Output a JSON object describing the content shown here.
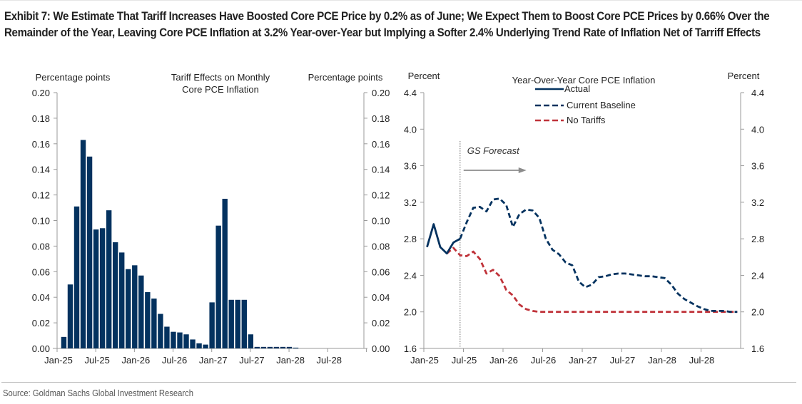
{
  "exhibit": {
    "title": "Exhibit 7: We Estimate That Tariff Increases Have Boosted Core PCE Price by 0.2% as of June; We Expect Them to Boost Core PCE Prices by 0.66% Over the Remainder of the Year, Leaving Core PCE Inflation at 3.2% Year-over-Year but Implying a Softer 2.4% Underlying Trend Rate of Inflation Net of Tarriff Effects",
    "source": "Source: Goldman Sachs Global Investment Research"
  },
  "colors": {
    "navy": "#04325f",
    "red": "#c0333a",
    "axis": "#9a9a9a",
    "forecast_arrow": "#8c8c8c"
  },
  "chart_data": [
    {
      "type": "bar",
      "title": "Tariff Effects on Monthly Core PCE Inflation",
      "ylabel_left": "Percentage points",
      "ylabel_right": "Percentage points",
      "xlabel": "",
      "ylim": [
        0,
        0.2
      ],
      "yticks": [
        "0.00",
        "0.02",
        "0.04",
        "0.06",
        "0.08",
        "0.10",
        "0.12",
        "0.14",
        "0.16",
        "0.18",
        "0.20"
      ],
      "xticks": [
        "Jan-25",
        "Jul-25",
        "Jan-26",
        "Jul-26",
        "Jan-27",
        "Jul-27",
        "Jan-28",
        "Jul-28"
      ],
      "grid": false,
      "categories": [
        "Feb-25",
        "Mar-25",
        "Apr-25",
        "May-25",
        "Jun-25",
        "Jul-25",
        "Aug-25",
        "Sep-25",
        "Oct-25",
        "Nov-25",
        "Dec-25",
        "Jan-26",
        "Feb-26",
        "Mar-26",
        "Apr-26",
        "May-26",
        "Jun-26",
        "Jul-26",
        "Aug-26",
        "Sep-26",
        "Oct-26",
        "Nov-26",
        "Dec-26",
        "Jan-27",
        "Feb-27",
        "Mar-27",
        "Apr-27",
        "May-27",
        "Jun-27",
        "Jul-27",
        "Aug-27",
        "Sep-27",
        "Oct-27",
        "Nov-27",
        "Dec-27",
        "Jan-28",
        "Feb-28"
      ],
      "values": [
        0.009,
        0.05,
        0.111,
        0.163,
        0.15,
        0.093,
        0.094,
        0.108,
        0.083,
        0.075,
        0.062,
        0.065,
        0.057,
        0.044,
        0.039,
        0.027,
        0.017,
        0.013,
        0.0125,
        0.011,
        0.007,
        0.004,
        0.003,
        0.036,
        0.096,
        0.117,
        0.038,
        0.038,
        0.038,
        0.011,
        0.0012,
        0.0012,
        0.0012,
        0.0012,
        0.0012,
        0.0012,
        0.0006
      ]
    },
    {
      "type": "line",
      "title": "Year-Over-Year Core PCE Inflation",
      "ylabel_left": "Percent",
      "ylabel_right": "Percent",
      "xlabel": "",
      "ylim": [
        1.6,
        4.4
      ],
      "yticks": [
        "1.6",
        "2.0",
        "2.4",
        "2.8",
        "3.2",
        "3.6",
        "4.0",
        "4.4"
      ],
      "xticks": [
        "Jan-25",
        "Jul-25",
        "Jan-26",
        "Jul-26",
        "Jan-27",
        "Jul-27",
        "Jan-28",
        "Jul-28"
      ],
      "grid": false,
      "legend_position": "top-center",
      "annotation": {
        "text": "GS Forecast",
        "at": "Jun-25"
      },
      "series": [
        {
          "name": "Actual",
          "style": "solid",
          "color": "#04325f",
          "x": [
            "Jan-25",
            "Feb-25",
            "Mar-25",
            "Apr-25",
            "May-25",
            "Jun-25"
          ],
          "values": [
            2.71,
            2.96,
            2.71,
            2.64,
            2.76,
            2.8
          ]
        },
        {
          "name": "Current Baseline",
          "style": "dashed",
          "color": "#04325f",
          "x": [
            "Jun-25",
            "Jul-25",
            "Aug-25",
            "Sep-25",
            "Oct-25",
            "Nov-25",
            "Dec-25",
            "Jan-26",
            "Feb-26",
            "Mar-26",
            "Apr-26",
            "May-26",
            "Jun-26",
            "Jul-26",
            "Aug-26",
            "Sep-26",
            "Oct-26",
            "Nov-26",
            "Dec-26",
            "Jan-27",
            "Feb-27",
            "Mar-27",
            "Apr-27",
            "May-27",
            "Jun-27",
            "Jul-27",
            "Aug-27",
            "Sep-27",
            "Oct-27",
            "Nov-27",
            "Dec-27",
            "Jan-28",
            "Feb-28",
            "Mar-28",
            "Apr-28",
            "May-28",
            "Jun-28",
            "Jul-28",
            "Aug-28",
            "Sep-28",
            "Oct-28",
            "Nov-28",
            "Dec-28"
          ],
          "values": [
            2.8,
            2.98,
            3.14,
            3.15,
            3.1,
            3.23,
            3.24,
            3.17,
            2.93,
            3.07,
            3.12,
            3.11,
            3.03,
            2.8,
            2.68,
            2.63,
            2.54,
            2.51,
            2.33,
            2.27,
            2.3,
            2.38,
            2.39,
            2.41,
            2.42,
            2.42,
            2.41,
            2.4,
            2.39,
            2.39,
            2.38,
            2.37,
            2.3,
            2.2,
            2.14,
            2.1,
            2.06,
            2.03,
            2.01,
            2.01,
            2.01,
            2.0,
            2.0
          ]
        },
        {
          "name": "No Tariffs",
          "style": "dashed",
          "color": "#c0333a",
          "x": [
            "Apr-25",
            "May-25",
            "Jun-25",
            "Jul-25",
            "Aug-25",
            "Sep-25",
            "Oct-25",
            "Nov-25",
            "Dec-25",
            "Jan-26",
            "Feb-26",
            "Mar-26",
            "Apr-26",
            "May-26",
            "Jun-26",
            "Jul-26",
            "Aug-26",
            "Sep-26",
            "Oct-26",
            "Nov-26",
            "Dec-26",
            "Jan-27",
            "Feb-27",
            "Mar-27",
            "Apr-27",
            "May-27",
            "Jun-27",
            "Jul-27",
            "Aug-27",
            "Sep-27",
            "Oct-27",
            "Nov-27",
            "Dec-27",
            "Jan-28",
            "Feb-28",
            "Mar-28",
            "Apr-28",
            "May-28",
            "Jun-28",
            "Jul-28",
            "Aug-28",
            "Sep-28",
            "Oct-28",
            "Nov-28",
            "Dec-28"
          ],
          "values": [
            2.64,
            2.7,
            2.62,
            2.61,
            2.66,
            2.58,
            2.42,
            2.46,
            2.39,
            2.24,
            2.18,
            2.08,
            2.03,
            2.01,
            2.0,
            2.0,
            2.0,
            2.0,
            2.0,
            2.0,
            2.0,
            2.0,
            2.0,
            2.0,
            2.0,
            2.0,
            2.0,
            2.0,
            2.0,
            2.0,
            2.0,
            2.0,
            2.0,
            2.0,
            2.0,
            2.0,
            2.0,
            2.0,
            2.0,
            2.0,
            2.0,
            2.0,
            2.0,
            2.0,
            2.0
          ]
        }
      ]
    }
  ]
}
